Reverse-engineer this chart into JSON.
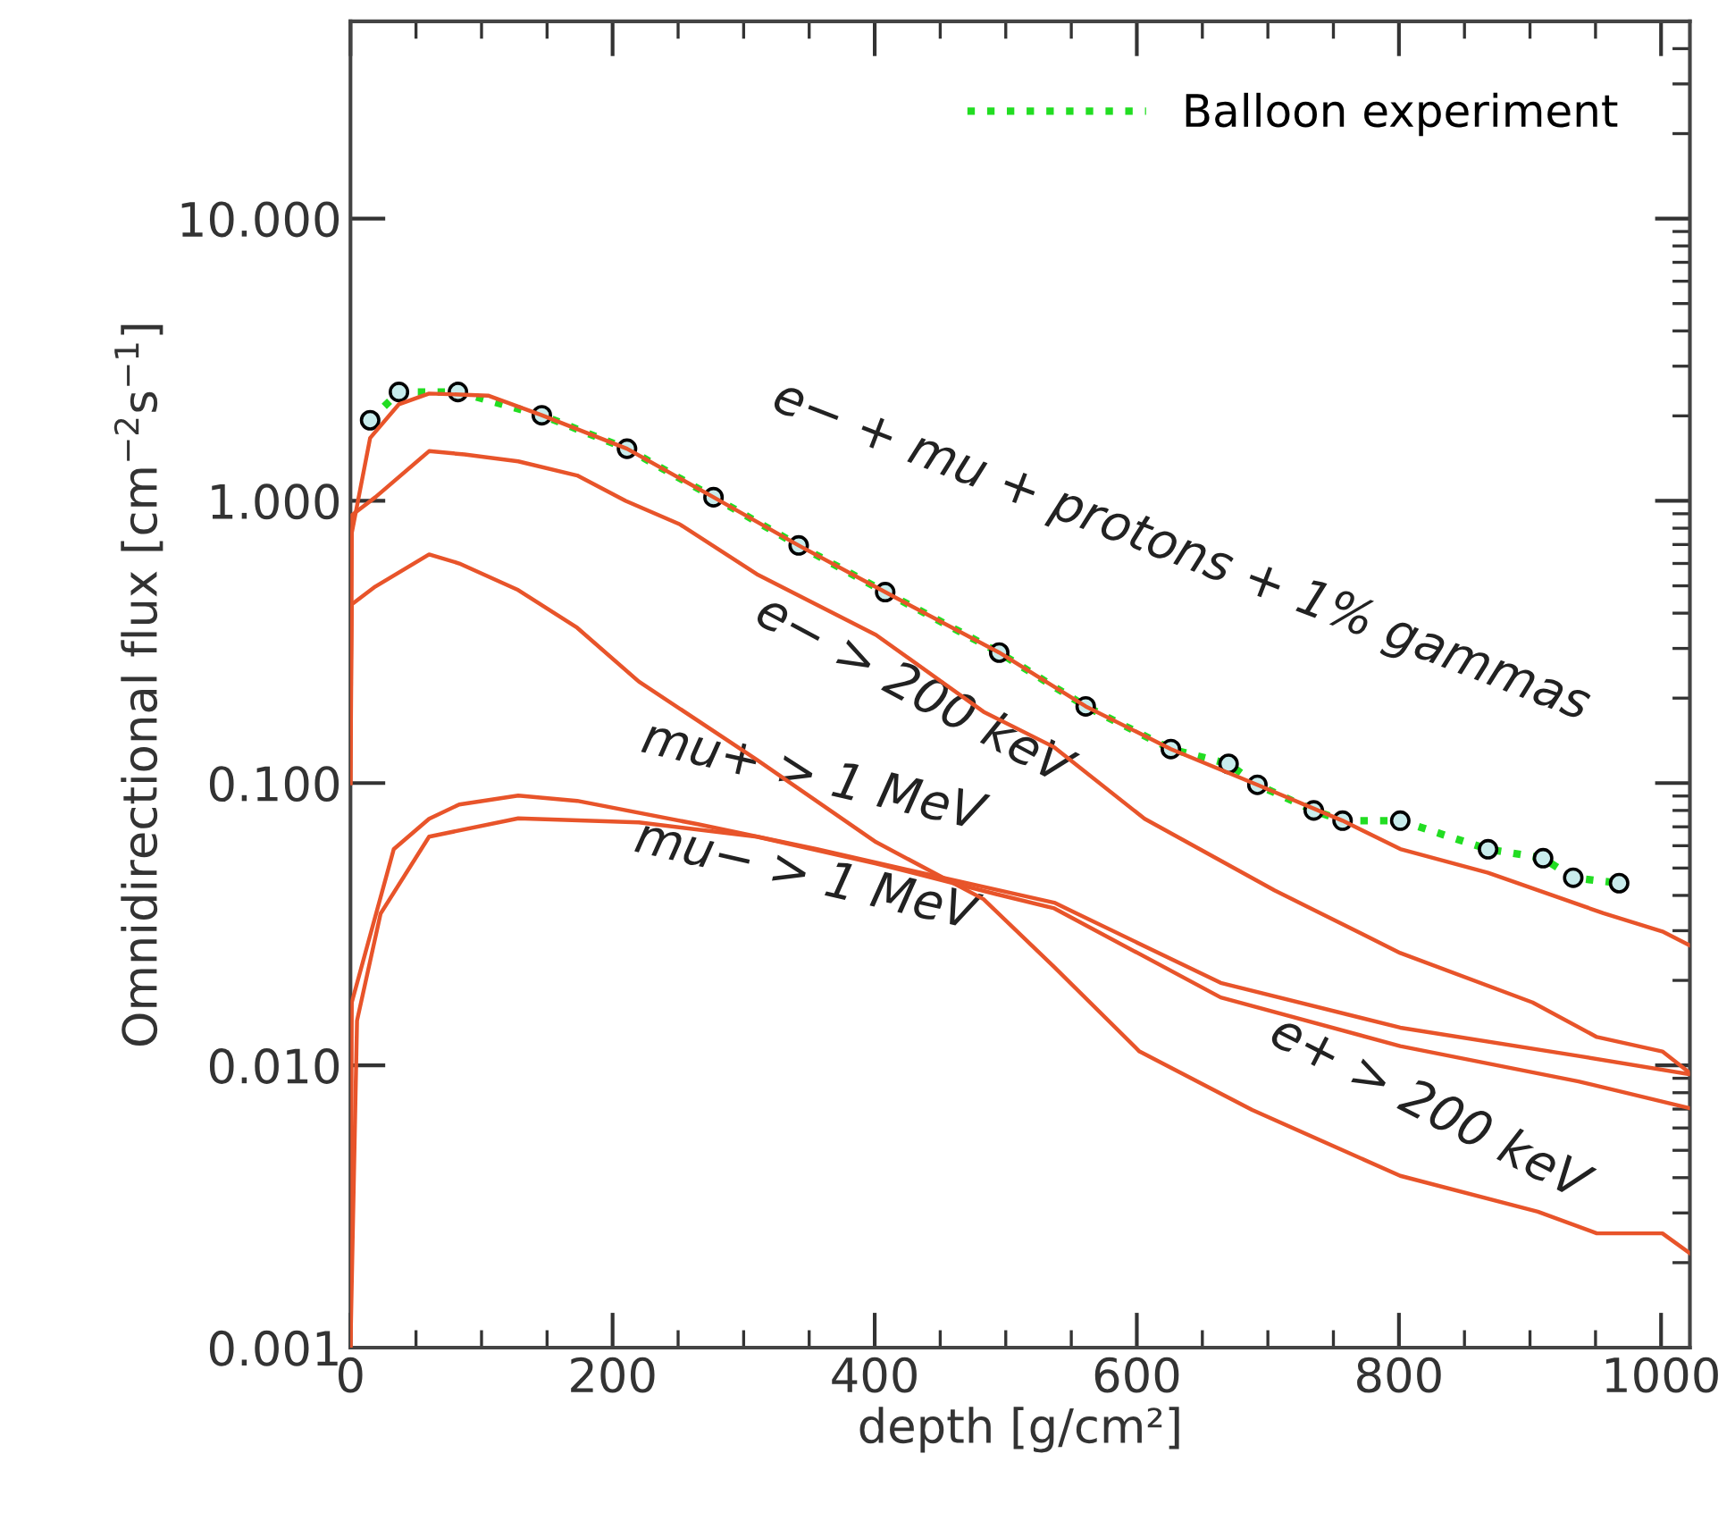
{
  "chart_data": {
    "type": "line",
    "xlabel": "depth [g/cm²]",
    "ylabel": "Omnidirectional flux [cm$^{−2}$s$^{−1}$]",
    "log": "y",
    "xlim": [
      0,
      1022
    ],
    "ylim": [
      0.001,
      50
    ],
    "xticks": [
      0,
      200,
      400,
      600,
      800,
      1000
    ],
    "yticks": [
      {
        "value": 0.001,
        "label": "0.001"
      },
      {
        "value": 0.01,
        "label": "0.010"
      },
      {
        "value": 0.1,
        "label": "0.100"
      },
      {
        "value": 1,
        "label": "1.000"
      },
      {
        "value": 10,
        "label": "10.000"
      }
    ],
    "grid": false,
    "legend": "top right",
    "series": [
      {
        "name": "Balloon experiment",
        "color": "#22dd22",
        "line_style": "dotted",
        "marker": "circle",
        "x": [
          15,
          37,
          82,
          146,
          211,
          277,
          342,
          408,
          495,
          561,
          626,
          670,
          692,
          735,
          757,
          801,
          868,
          910,
          933,
          968
        ],
        "values": [
          1.93,
          2.43,
          2.43,
          2.01,
          1.53,
          1.03,
          0.695,
          0.475,
          0.29,
          0.187,
          0.132,
          0.117,
          0.0986,
          0.08,
          0.0736,
          0.0736,
          0.0583,
          0.0542,
          0.0462,
          0.0442
        ]
      },
      {
        "color": "#e8542a",
        "line_style": "solid",
        "marker": "none",
        "x": [
          0,
          1,
          15,
          37,
          60,
          105,
          146,
          211,
          277,
          342,
          408,
          495,
          561,
          626,
          692,
          757,
          801,
          868,
          956,
          1001,
          1022
        ],
        "values": [
          0.15,
          0.77,
          1.67,
          2.2,
          2.4,
          2.36,
          2.01,
          1.53,
          1.03,
          0.695,
          0.475,
          0.29,
          0.187,
          0.132,
          0.0986,
          0.0736,
          0.0584,
          0.0481,
          0.0346,
          0.0298,
          0.0266
        ]
      },
      {
        "color": "#e8542a",
        "line_style": "solid",
        "marker": "none",
        "x": [
          0,
          1,
          19,
          60,
          87,
          128,
          173,
          210,
          251,
          310,
          401,
          483,
          537,
          606,
          705,
          801,
          902,
          951,
          1001,
          1022
        ],
        "values": [
          0.1,
          0.89,
          1.03,
          1.5,
          1.46,
          1.38,
          1.23,
          1.0,
          0.827,
          0.55,
          0.335,
          0.179,
          0.134,
          0.0747,
          0.0417,
          0.025,
          0.0167,
          0.0126,
          0.0112,
          0.0094
        ]
      },
      {
        "color": "#e8542a",
        "line_style": "solid",
        "marker": "none",
        "x": [
          0,
          1,
          19,
          60,
          83,
          128,
          173,
          220,
          310,
          401,
          483,
          537,
          602,
          688,
          801,
          906,
          951,
          1001,
          1022
        ],
        "values": [
          0.1,
          0.43,
          0.497,
          0.646,
          0.6,
          0.483,
          0.355,
          0.229,
          0.121,
          0.0618,
          0.0388,
          0.0223,
          0.0112,
          0.00695,
          0.00406,
          0.00303,
          0.00254,
          0.00254,
          0.00216
        ]
      },
      {
        "color": "#e8542a",
        "line_style": "solid",
        "marker": "none",
        "x": [
          0,
          1,
          33,
          60,
          83,
          128,
          173,
          265,
          356,
          446,
          537,
          664,
          801,
          937,
          1022
        ],
        "values": [
          0.001,
          0.0167,
          0.0583,
          0.0747,
          0.084,
          0.0903,
          0.0865,
          0.0715,
          0.0583,
          0.0469,
          0.0377,
          0.0196,
          0.0136,
          0.0108,
          0.0093
        ]
      },
      {
        "color": "#e8542a",
        "line_style": "solid",
        "marker": "none",
        "x": [
          0,
          5,
          23,
          60,
          128,
          220,
          310,
          401,
          492,
          537,
          664,
          801,
          937,
          1022
        ],
        "values": [
          0.001,
          0.0144,
          0.0345,
          0.0646,
          0.075,
          0.0726,
          0.0646,
          0.0519,
          0.0405,
          0.036,
          0.0174,
          0.0117,
          0.00877,
          0.00705
        ]
      }
    ],
    "annotations": [
      "e− + mu + protons + 1% gammas",
      "e− > 200 keV",
      "mu+ > 1 MeV",
      "mu− > 1 MeV",
      "e+ > 200 keV"
    ]
  }
}
